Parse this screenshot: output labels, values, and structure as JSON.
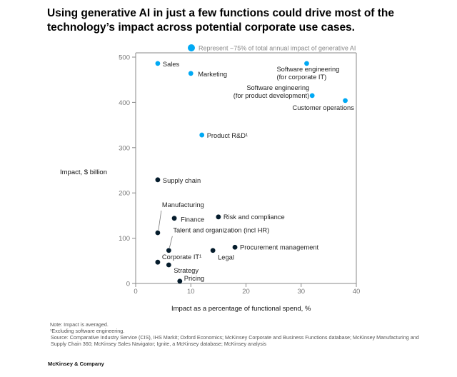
{
  "title": "Using generative AI in just a few functions could drive most of the technology’s impact across potential corporate use cases.",
  "chart_data": {
    "type": "scatter",
    "xlabel": "Impact as a percentage of functional spend, %",
    "ylabel": "Impact, $ billion",
    "xlim": [
      0,
      40
    ],
    "ylim": [
      0,
      500
    ],
    "xticks": [
      0,
      10,
      20,
      30,
      40
    ],
    "yticks": [
      0,
      100,
      200,
      300,
      400,
      500
    ],
    "grid": false,
    "legend": {
      "label": "Represent ~75% of total annual impact of generative AI",
      "color": "#00a9f4",
      "placement": "top"
    },
    "colors": {
      "highlight": "#00a9f4",
      "other": "#051c2c"
    },
    "points": [
      {
        "label": "Sales",
        "x": 4,
        "y": 486,
        "highlight": true
      },
      {
        "label": "Marketing",
        "x": 10,
        "y": 464,
        "highlight": true
      },
      {
        "label": "Software engineering\n(for corporate IT)",
        "x": 31,
        "y": 486,
        "highlight": true
      },
      {
        "label": "Software engineering\n(for product development)",
        "x": 32,
        "y": 415,
        "highlight": true
      },
      {
        "label": "Customer operations",
        "x": 38,
        "y": 404,
        "highlight": true
      },
      {
        "label": "Product R&D¹",
        "x": 12,
        "y": 328,
        "highlight": true
      },
      {
        "label": "Supply chain",
        "x": 4,
        "y": 229,
        "highlight": false
      },
      {
        "label": "Manufacturing",
        "x": 4,
        "y": 112,
        "highlight": false
      },
      {
        "label": "Finance",
        "x": 7,
        "y": 144,
        "highlight": false
      },
      {
        "label": "Risk and compliance",
        "x": 15,
        "y": 147,
        "highlight": false
      },
      {
        "label": "Talent and organization (incl HR)",
        "x": 6,
        "y": 73,
        "highlight": false
      },
      {
        "label": "Legal",
        "x": 14,
        "y": 73,
        "highlight": false
      },
      {
        "label": "Procurement management",
        "x": 18,
        "y": 80,
        "highlight": false
      },
      {
        "label": "Corporate IT¹",
        "x": 4,
        "y": 47,
        "highlight": false
      },
      {
        "label": "Strategy",
        "x": 6,
        "y": 41,
        "highlight": false
      },
      {
        "label": "Pricing",
        "x": 8,
        "y": 5,
        "highlight": false
      }
    ]
  },
  "notes": {
    "note": "Note: Impact is averaged.",
    "footnote": "¹Excluding software engineering.",
    "source": "Source: Comparative Industry Service (CIS), IHS Markit; Oxford Economics; McKinsey Corporate and Business Functions database; McKinsey Manufacturing and Supply Chain 360; McKinsey Sales Navigator; Ignite, a McKinsey database; McKinsey analysis"
  },
  "brand": "McKinsey & Company"
}
